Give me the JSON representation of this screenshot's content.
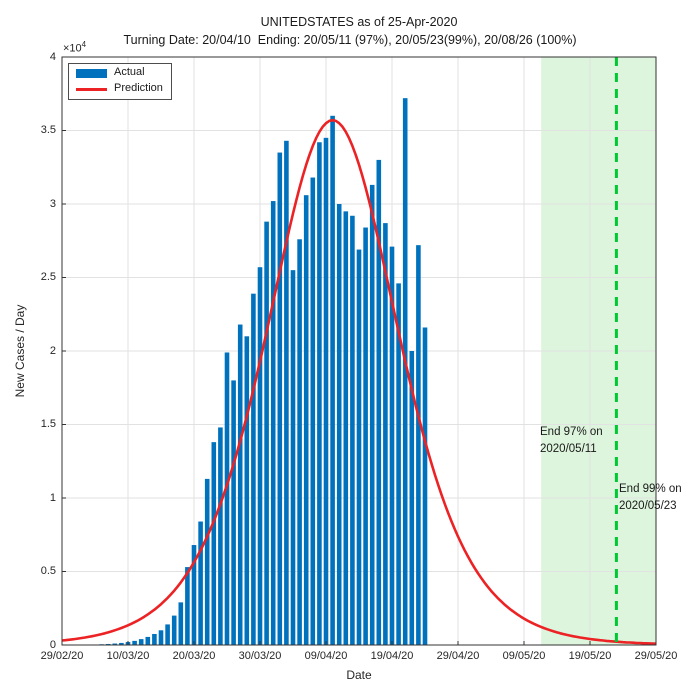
{
  "figure": {
    "title": "UNITEDSTATES as of 25-Apr-2020",
    "subtitle": "Turning Date: 20/04/10  Ending: 20/05/11 (97%), 20/05/23(99%), 20/08/26 (100%)"
  },
  "legend": {
    "actual_label": "Actual",
    "prediction_label": "Prediction"
  },
  "axes": {
    "xlabel": "Date",
    "ylabel": "New Cases / Day",
    "y_multiplier_base": "×10",
    "y_multiplier_exp": "4",
    "x_ticks": [
      {
        "label": "29/02/20",
        "day": 0
      },
      {
        "label": "10/03/20",
        "day": 10
      },
      {
        "label": "20/03/20",
        "day": 20
      },
      {
        "label": "30/03/20",
        "day": 30
      },
      {
        "label": "09/04/20",
        "day": 40
      },
      {
        "label": "19/04/20",
        "day": 50
      },
      {
        "label": "29/04/20",
        "day": 60
      },
      {
        "label": "09/05/20",
        "day": 70
      },
      {
        "label": "19/05/20",
        "day": 80
      },
      {
        "label": "29/05/20",
        "day": 90
      }
    ],
    "y_ticks": [
      {
        "label": "0",
        "value": 0
      },
      {
        "label": "0.5",
        "value": 5000
      },
      {
        "label": "1",
        "value": 10000
      },
      {
        "label": "1.5",
        "value": 15000
      },
      {
        "label": "2",
        "value": 20000
      },
      {
        "label": "2.5",
        "value": 25000
      },
      {
        "label": "3",
        "value": 30000
      },
      {
        "label": "3.5",
        "value": 35000
      },
      {
        "label": "4",
        "value": 40000
      }
    ]
  },
  "annotations": {
    "end97": {
      "line1": "End 97% on",
      "line2": "2020/05/11"
    },
    "end99": {
      "line1": "End 99% on",
      "line2": "2020/05/23"
    }
  },
  "colors": {
    "bar": "#0072BD",
    "prediction": "#EC2224",
    "region_fill": "#DDF4DD",
    "dashed_line": "#00C832",
    "grid": "#E2E2E2",
    "axis": "#333333"
  },
  "chart_data": {
    "type": "bar",
    "title": "UNITEDSTATES as of 25-Apr-2020",
    "xlabel": "Date",
    "ylabel": "New Cases / Day",
    "ylim": [
      0,
      40000
    ],
    "y_unit_multiplier": 10000,
    "grid": true,
    "legend_position": "top-left",
    "turning_date": "20/04/10",
    "ending_dates": {
      "p97": "20/05/11",
      "p99": "20/05/23",
      "p100": "20/08/26"
    },
    "series": [
      {
        "name": "Actual",
        "type": "bar",
        "dates": [
          "29/02/20",
          "01/03/20",
          "02/03/20",
          "03/03/20",
          "04/03/20",
          "05/03/20",
          "06/03/20",
          "07/03/20",
          "08/03/20",
          "09/03/20",
          "10/03/20",
          "11/03/20",
          "12/03/20",
          "13/03/20",
          "14/03/20",
          "15/03/20",
          "16/03/20",
          "17/03/20",
          "18/03/20",
          "19/03/20",
          "20/03/20",
          "21/03/20",
          "22/03/20",
          "23/03/20",
          "24/03/20",
          "25/03/20",
          "26/03/20",
          "27/03/20",
          "28/03/20",
          "29/03/20",
          "30/03/20",
          "31/03/20",
          "01/04/20",
          "02/04/20",
          "03/04/20",
          "04/04/20",
          "05/04/20",
          "06/04/20",
          "07/04/20",
          "08/04/20",
          "09/04/20",
          "10/04/20",
          "11/04/20",
          "12/04/20",
          "13/04/20",
          "14/04/20",
          "15/04/20",
          "16/04/20",
          "17/04/20",
          "18/04/20",
          "19/04/20",
          "20/04/20",
          "21/04/20",
          "22/04/20",
          "23/04/20",
          "24/04/20"
        ],
        "values": [
          10,
          10,
          15,
          20,
          25,
          35,
          50,
          70,
          100,
          140,
          200,
          280,
          400,
          550,
          750,
          1000,
          1400,
          2000,
          2900,
          5300,
          6800,
          8400,
          11300,
          13800,
          14800,
          19900,
          18000,
          21800,
          21000,
          23900,
          25700,
          28800,
          30200,
          33500,
          34300,
          25500,
          27600,
          30600,
          31800,
          34200,
          34500,
          36000,
          30000,
          29500,
          29200,
          26900,
          28400,
          31300,
          33000,
          28700,
          27100,
          24600,
          37200,
          20000,
          27200,
          21600
        ]
      },
      {
        "name": "Prediction",
        "type": "line",
        "model": "logistic_new_cases_per_day",
        "peak_value": 35700,
        "peak_date": "10/04/20",
        "peak_day_index": 41,
        "growth_rate_k": 0.15,
        "day_range": [
          0,
          90
        ]
      }
    ],
    "shaded_region": {
      "start_day": 72.6,
      "end_day": 90,
      "meaning": "after 97% ending date"
    },
    "end99_line_day": 84
  }
}
